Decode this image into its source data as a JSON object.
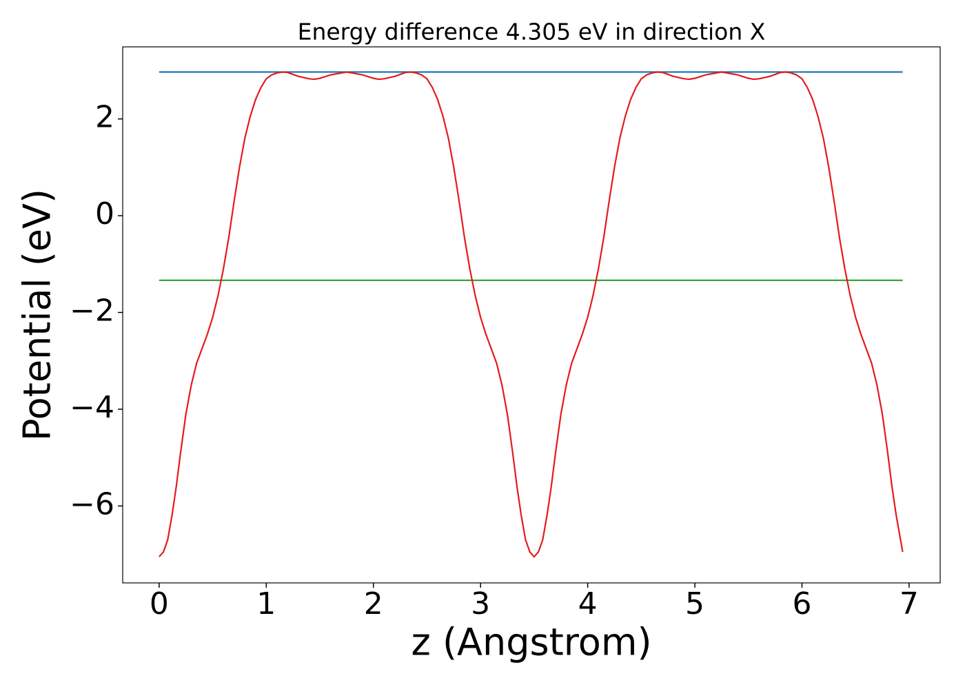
{
  "chart_data": {
    "type": "line",
    "title": "Energy difference 4.305 eV in direction X",
    "xlabel": "z (Angstrom)",
    "ylabel": "Potential (eV)",
    "xlim": [
      -0.34,
      7.29
    ],
    "ylim": [
      -7.59,
      3.49
    ],
    "xticks": [
      0,
      1,
      2,
      3,
      4,
      5,
      6,
      7
    ],
    "yticks": [
      {
        "value": -6,
        "label": "−6"
      },
      {
        "value": -4,
        "label": "−4"
      },
      {
        "value": -2,
        "label": "−2"
      },
      0,
      2
    ],
    "grid": false,
    "series": [
      {
        "color": "#e31a1c",
        "x": [
          0,
          0.04,
          0.08,
          0.12,
          0.16,
          0.2,
          0.25,
          0.3,
          0.35,
          0.4,
          0.45,
          0.5,
          0.55,
          0.6,
          0.65,
          0.7,
          0.75,
          0.8,
          0.85,
          0.9,
          0.95,
          1.0,
          1.05,
          1.1,
          1.15,
          1.2,
          1.3,
          1.4,
          1.45,
          1.5,
          1.6,
          1.75,
          1.9,
          2.0,
          2.05,
          2.1,
          2.2,
          2.3,
          2.35,
          2.4,
          2.45,
          2.5,
          2.55,
          2.6,
          2.65,
          2.7,
          2.75,
          2.8,
          2.85,
          2.9,
          2.95,
          3.0,
          3.05,
          3.1,
          3.15,
          3.2,
          3.25,
          3.3,
          3.34,
          3.38,
          3.42,
          3.46,
          3.5,
          3.54,
          3.58,
          3.62,
          3.66,
          3.7,
          3.75,
          3.8,
          3.85,
          3.9,
          3.95,
          4.0,
          4.05,
          4.1,
          4.15,
          4.2,
          4.25,
          4.3,
          4.35,
          4.4,
          4.45,
          4.5,
          4.55,
          4.6,
          4.65,
          4.7,
          4.8,
          4.9,
          4.95,
          5.0,
          5.1,
          5.25,
          5.4,
          5.5,
          5.55,
          5.6,
          5.7,
          5.8,
          5.85,
          5.9,
          5.95,
          6.0,
          6.05,
          6.1,
          6.15,
          6.2,
          6.25,
          6.3,
          6.35,
          6.4,
          6.45,
          6.5,
          6.55,
          6.6,
          6.65,
          6.7,
          6.75,
          6.8,
          6.84,
          6.88,
          6.92,
          6.94
        ],
        "values": [
          -7.05,
          -6.95,
          -6.7,
          -6.2,
          -5.6,
          -4.9,
          -4.1,
          -3.5,
          -3.05,
          -2.75,
          -2.45,
          -2.1,
          -1.65,
          -1.1,
          -0.45,
          0.3,
          1.0,
          1.6,
          2.05,
          2.4,
          2.65,
          2.83,
          2.91,
          2.95,
          2.97,
          2.96,
          2.88,
          2.83,
          2.82,
          2.84,
          2.91,
          2.97,
          2.91,
          2.84,
          2.82,
          2.83,
          2.88,
          2.96,
          2.97,
          2.95,
          2.91,
          2.83,
          2.65,
          2.4,
          2.05,
          1.6,
          1.0,
          0.3,
          -0.45,
          -1.1,
          -1.65,
          -2.1,
          -2.45,
          -2.75,
          -3.05,
          -3.5,
          -4.1,
          -4.9,
          -5.6,
          -6.2,
          -6.7,
          -6.95,
          -7.05,
          -6.95,
          -6.7,
          -6.2,
          -5.6,
          -4.9,
          -4.1,
          -3.5,
          -3.05,
          -2.75,
          -2.45,
          -2.1,
          -1.65,
          -1.1,
          -0.45,
          0.3,
          1.0,
          1.6,
          2.05,
          2.4,
          2.65,
          2.83,
          2.91,
          2.95,
          2.97,
          2.96,
          2.88,
          2.83,
          2.82,
          2.84,
          2.91,
          2.97,
          2.91,
          2.84,
          2.82,
          2.83,
          2.88,
          2.96,
          2.97,
          2.95,
          2.91,
          2.83,
          2.65,
          2.4,
          2.05,
          1.6,
          1.0,
          0.3,
          -0.45,
          -1.1,
          -1.65,
          -2.1,
          -2.45,
          -2.75,
          -3.05,
          -3.5,
          -4.1,
          -4.9,
          -5.6,
          -6.2,
          -6.7,
          -6.95
        ]
      },
      {
        "color": "#1f77b4",
        "x": [
          0,
          6.94
        ],
        "values": [
          2.97,
          2.97
        ]
      },
      {
        "color": "#2ca02c",
        "x": [
          0,
          6.94
        ],
        "values": [
          -1.335,
          -1.335
        ]
      }
    ]
  }
}
